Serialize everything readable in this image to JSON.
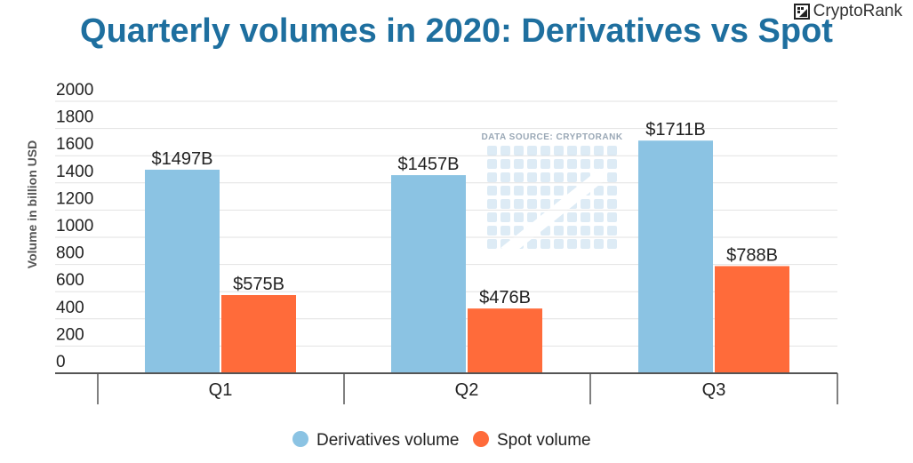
{
  "brand": {
    "name": "CryptoRank",
    "icon": "cryptorank-logo-icon"
  },
  "watermark": {
    "text": "DATA SOURCE: CRYPTORANK",
    "icon": "cryptorank-watermark-logo"
  },
  "colors": {
    "derivatives": "#8bc3e3",
    "spot": "#ff6b3a",
    "title": "#1e6f9f",
    "axis": "#555555",
    "grid": "#e2e2e2",
    "text": "#222222"
  },
  "chart_data": {
    "type": "bar",
    "title": "Quarterly volumes in 2020: Derivatives vs Spot",
    "xlabel": "",
    "ylabel": "Volume in billion USD",
    "ylim": [
      0,
      2000
    ],
    "yticks": [
      0,
      200,
      400,
      600,
      800,
      1000,
      1200,
      1400,
      1600,
      1800,
      2000
    ],
    "categories": [
      "Q1",
      "Q2",
      "Q3"
    ],
    "series": [
      {
        "name": "Derivatives volume",
        "values": [
          1497,
          1457,
          1711
        ],
        "labels": [
          "$1497B",
          "$1457B",
          "$1711B"
        ]
      },
      {
        "name": "Spot volume",
        "values": [
          575,
          476,
          788
        ],
        "labels": [
          "$575B",
          "$476B",
          "$788B"
        ]
      }
    ],
    "grid": true,
    "legend": "bottom-center"
  }
}
